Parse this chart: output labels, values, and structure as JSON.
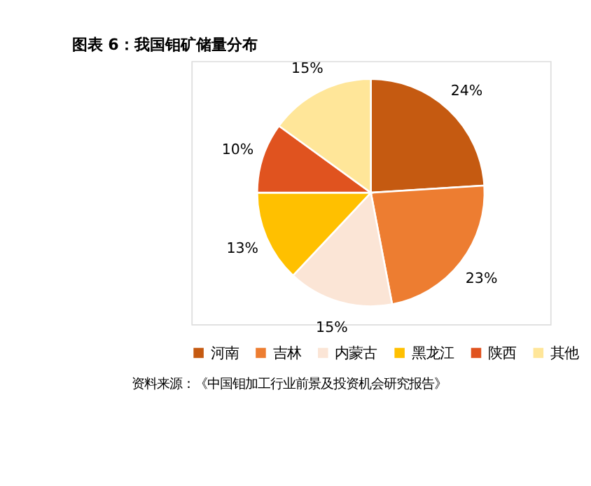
{
  "chart_data": {
    "type": "pie",
    "title": "图表 6：我国钼矿储量分布",
    "categories": [
      "河南",
      "吉林",
      "内蒙古",
      "黑龙江",
      "陕西",
      "其他"
    ],
    "values": [
      24,
      23,
      15,
      13,
      10,
      15
    ],
    "colors": [
      "#c55a11",
      "#ed7d31",
      "#fbe5d6",
      "#ffc000",
      "#e0531f",
      "#ffe699"
    ],
    "value_labels": [
      "24%",
      "23%",
      "15%",
      "13%",
      "10%",
      "15%"
    ],
    "legend": "bottom",
    "annotations": [
      "资料来源：《中国钼加工行业前景及投资机会研究报告》"
    ]
  }
}
